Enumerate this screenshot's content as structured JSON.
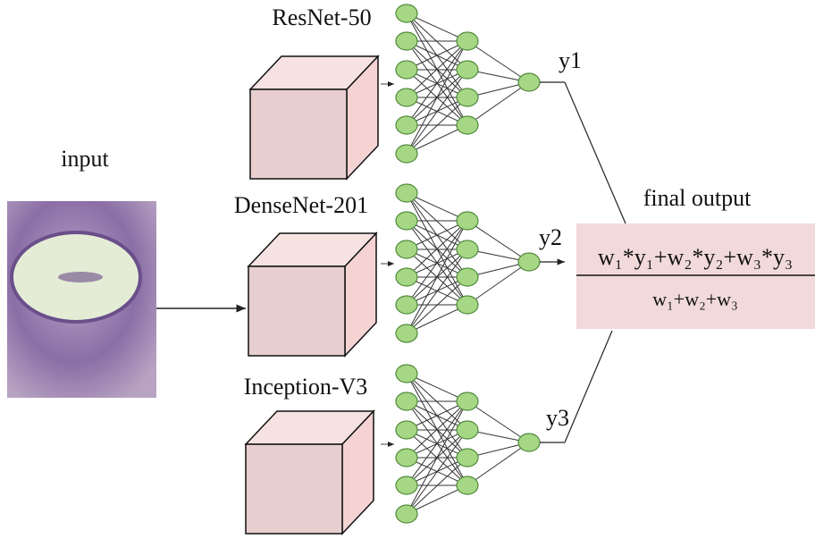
{
  "input_label": "input",
  "models": [
    {
      "name": "ResNet-50",
      "output": "y1"
    },
    {
      "name": "DenseNet-201",
      "output": "y2"
    },
    {
      "name": "Inception-V3",
      "output": "y3"
    }
  ],
  "final_output": {
    "title": "final output",
    "numerator": "w₁*y₁+w₂*y₂+w₃*y₃",
    "denominator": "w₁+w₂+w₃"
  }
}
